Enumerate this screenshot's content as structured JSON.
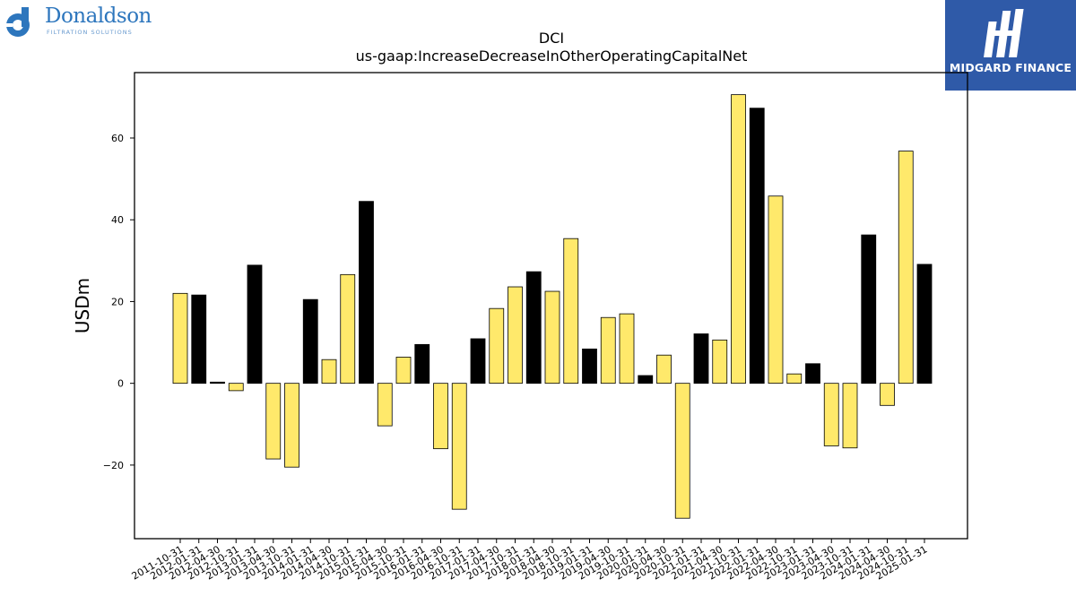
{
  "logos": {
    "left_name": "Donaldson",
    "left_sub": "FILTRATION SOLUTIONS",
    "right_name": "MIDGARD FINANCE"
  },
  "colors": {
    "bar_yellow": "#ffe96b",
    "bar_black": "#000000",
    "logo_left": "#2d76bd",
    "logo_right_bg": "#2f5aa8"
  },
  "chart_data": {
    "type": "bar",
    "title": "DCI",
    "subtitle": "us-gaap:IncreaseDecreaseInOtherOperatingCapitalNet",
    "xlabel": "",
    "ylabel": "USDm",
    "ylim": [
      -38,
      76
    ],
    "yticks": [
      -20,
      0,
      20,
      40,
      60
    ],
    "ytick_labels": [
      "−20",
      "0",
      "20",
      "40",
      "60"
    ],
    "grid": false,
    "categories": [
      "2011-10-31",
      "2012-01-31",
      "2012-04-30",
      "2012-10-31",
      "2013-01-31",
      "2013-04-30",
      "2013-10-31",
      "2014-01-31",
      "2014-04-30",
      "2014-10-31",
      "2015-01-31",
      "2015-04-30",
      "2015-10-31",
      "2016-01-31",
      "2016-04-30",
      "2016-10-31",
      "2017-01-31",
      "2017-04-30",
      "2017-10-31",
      "2018-01-31",
      "2018-04-30",
      "2018-10-31",
      "2019-01-31",
      "2019-04-30",
      "2019-10-31",
      "2020-01-31",
      "2020-04-30",
      "2020-10-31",
      "2021-01-31",
      "2021-04-30",
      "2021-10-31",
      "2022-01-31",
      "2022-04-30",
      "2022-10-31",
      "2023-01-31",
      "2023-04-30",
      "2023-10-31",
      "2024-01-31",
      "2024-04-30",
      "2024-10-31",
      "2025-01-31"
    ],
    "values": [
      22.0,
      21.6,
      0.3,
      -1.8,
      28.9,
      -18.5,
      -20.5,
      20.5,
      5.8,
      26.6,
      44.5,
      -10.4,
      6.4,
      9.5,
      -16.0,
      -30.8,
      10.9,
      18.3,
      23.6,
      27.3,
      22.5,
      35.4,
      8.4,
      16.1,
      17.0,
      1.9,
      6.9,
      -33.0,
      12.1,
      10.6,
      70.6,
      67.3,
      45.8,
      2.3,
      4.8,
      -15.3,
      -15.8,
      36.3,
      -5.4,
      56.8,
      29.1
    ],
    "bar_colors": [
      "yellow",
      "black",
      "black",
      "yellow",
      "black",
      "yellow",
      "yellow",
      "black",
      "yellow",
      "yellow",
      "black",
      "yellow",
      "yellow",
      "black",
      "yellow",
      "yellow",
      "black",
      "yellow",
      "yellow",
      "black",
      "yellow",
      "yellow",
      "black",
      "yellow",
      "yellow",
      "black",
      "yellow",
      "yellow",
      "black",
      "yellow",
      "yellow",
      "black",
      "yellow",
      "yellow",
      "black",
      "yellow",
      "yellow",
      "black",
      "yellow",
      "yellow",
      "black"
    ]
  }
}
